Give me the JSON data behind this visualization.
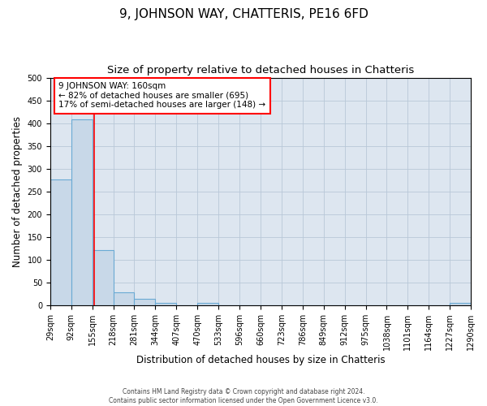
{
  "title": "9, JOHNSON WAY, CHATTERIS, PE16 6FD",
  "subtitle": "Size of property relative to detached houses in Chatteris",
  "xlabel": "Distribution of detached houses by size in Chatteris",
  "ylabel": "Number of detached properties",
  "bin_edges": [
    29,
    92,
    155,
    218,
    281,
    344,
    407,
    470,
    533,
    596,
    660,
    723,
    786,
    849,
    912,
    975,
    1038,
    1101,
    1164,
    1227,
    1290
  ],
  "bin_labels": [
    "29sqm",
    "92sqm",
    "155sqm",
    "218sqm",
    "281sqm",
    "344sqm",
    "407sqm",
    "470sqm",
    "533sqm",
    "596sqm",
    "660sqm",
    "723sqm",
    "786sqm",
    "849sqm",
    "912sqm",
    "975sqm",
    "1038sqm",
    "1101sqm",
    "1164sqm",
    "1227sqm",
    "1290sqm"
  ],
  "bar_heights": [
    277,
    409,
    122,
    29,
    15,
    5,
    0,
    5,
    0,
    0,
    0,
    0,
    0,
    0,
    0,
    0,
    0,
    0,
    0,
    5
  ],
  "bar_color": "#c8d8e8",
  "bar_edge_color": "#6aaad4",
  "bar_linewidth": 0.8,
  "vline_x": 160,
  "vline_color": "red",
  "vline_linewidth": 1.2,
  "ylim": [
    0,
    500
  ],
  "yticks": [
    0,
    50,
    100,
    150,
    200,
    250,
    300,
    350,
    400,
    450,
    500
  ],
  "annotation_title": "9 JOHNSON WAY: 160sqm",
  "annotation_line1": "← 82% of detached houses are smaller (695)",
  "annotation_line2": "17% of semi-detached houses are larger (148) →",
  "annotation_box_color": "white",
  "annotation_box_edge_color": "red",
  "grid_color": "#b8c8d8",
  "background_color": "#dde6f0",
  "footer_line1": "Contains HM Land Registry data © Crown copyright and database right 2024.",
  "footer_line2": "Contains public sector information licensed under the Open Government Licence v3.0.",
  "title_fontsize": 11,
  "subtitle_fontsize": 9.5,
  "axis_label_fontsize": 8.5,
  "tick_label_fontsize": 7,
  "annotation_fontsize": 7.5
}
